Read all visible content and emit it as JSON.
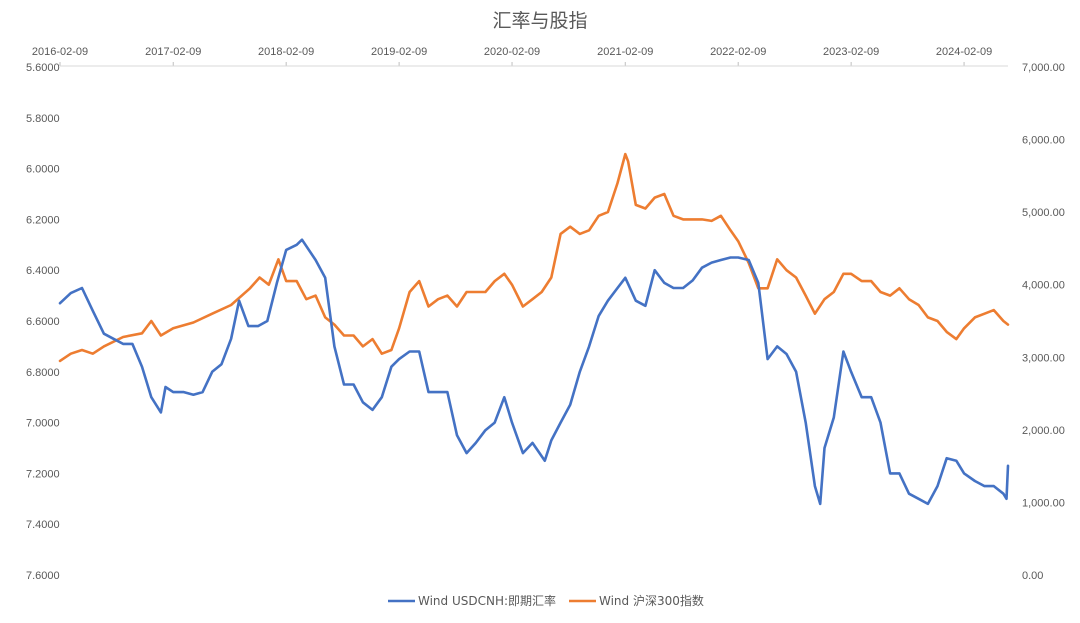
{
  "chart_data": {
    "type": "line",
    "title": "汇率与股指",
    "x_tick_labels": [
      "2016-02-09",
      "2017-02-09",
      "2018-02-09",
      "2019-02-09",
      "2020-02-09",
      "2021-02-09",
      "2022-02-09",
      "2023-02-09",
      "2024-02-09"
    ],
    "x_range": [
      "2016-02-09",
      "2024-06-30"
    ],
    "left_axis": {
      "ticks": [
        "5.6000",
        "5.8000",
        "6.0000",
        "6.2000",
        "6.4000",
        "6.6000",
        "6.8000",
        "7.0000",
        "7.2000",
        "7.4000",
        "7.6000"
      ],
      "range": [
        5.6,
        7.6
      ],
      "reversed": true
    },
    "right_axis": {
      "ticks": [
        "0.00",
        "1,000.00",
        "2,000.00",
        "3,000.00",
        "4,000.00",
        "5,000.00",
        "6,000.00",
        "7,000.00"
      ],
      "range": [
        0,
        7000
      ]
    },
    "legend_position": "bottom",
    "series": [
      {
        "name": "Wind USDCNH:即期汇率",
        "axis": "left",
        "color": "#4472C4",
        "points": [
          [
            "2016-02-09",
            6.53
          ],
          [
            "2016-03-15",
            6.49
          ],
          [
            "2016-04-20",
            6.47
          ],
          [
            "2016-05-25",
            6.56
          ],
          [
            "2016-06-30",
            6.65
          ],
          [
            "2016-07-31",
            6.67
          ],
          [
            "2016-08-31",
            6.69
          ],
          [
            "2016-09-30",
            6.69
          ],
          [
            "2016-10-31",
            6.78
          ],
          [
            "2016-11-30",
            6.9
          ],
          [
            "2016-12-31",
            6.96
          ],
          [
            "2017-01-15",
            6.86
          ],
          [
            "2017-02-09",
            6.88
          ],
          [
            "2017-03-15",
            6.88
          ],
          [
            "2017-04-15",
            6.89
          ],
          [
            "2017-05-15",
            6.88
          ],
          [
            "2017-06-15",
            6.8
          ],
          [
            "2017-07-15",
            6.77
          ],
          [
            "2017-08-15",
            6.67
          ],
          [
            "2017-09-10",
            6.52
          ],
          [
            "2017-10-10",
            6.62
          ],
          [
            "2017-11-10",
            6.62
          ],
          [
            "2017-12-10",
            6.6
          ],
          [
            "2018-01-10",
            6.45
          ],
          [
            "2018-02-09",
            6.32
          ],
          [
            "2018-03-15",
            6.3
          ],
          [
            "2018-04-01",
            6.28
          ],
          [
            "2018-05-15",
            6.36
          ],
          [
            "2018-06-15",
            6.43
          ],
          [
            "2018-07-15",
            6.7
          ],
          [
            "2018-08-15",
            6.85
          ],
          [
            "2018-09-15",
            6.85
          ],
          [
            "2018-10-15",
            6.92
          ],
          [
            "2018-11-15",
            6.95
          ],
          [
            "2018-12-15",
            6.9
          ],
          [
            "2019-01-15",
            6.78
          ],
          [
            "2019-02-09",
            6.75
          ],
          [
            "2019-03-15",
            6.72
          ],
          [
            "2019-04-15",
            6.72
          ],
          [
            "2019-05-15",
            6.88
          ],
          [
            "2019-06-15",
            6.88
          ],
          [
            "2019-07-15",
            6.88
          ],
          [
            "2019-08-15",
            7.05
          ],
          [
            "2019-09-15",
            7.12
          ],
          [
            "2019-10-15",
            7.08
          ],
          [
            "2019-11-15",
            7.03
          ],
          [
            "2019-12-15",
            7.0
          ],
          [
            "2020-01-15",
            6.9
          ],
          [
            "2020-02-09",
            7.0
          ],
          [
            "2020-03-15",
            7.12
          ],
          [
            "2020-04-15",
            7.08
          ],
          [
            "2020-05-25",
            7.15
          ],
          [
            "2020-06-15",
            7.07
          ],
          [
            "2020-07-15",
            7.0
          ],
          [
            "2020-08-15",
            6.93
          ],
          [
            "2020-09-15",
            6.8
          ],
          [
            "2020-10-15",
            6.7
          ],
          [
            "2020-11-15",
            6.58
          ],
          [
            "2020-12-15",
            6.52
          ],
          [
            "2021-01-15",
            6.47
          ],
          [
            "2021-02-09",
            6.43
          ],
          [
            "2021-03-15",
            6.52
          ],
          [
            "2021-04-15",
            6.54
          ],
          [
            "2021-05-15",
            6.4
          ],
          [
            "2021-06-15",
            6.45
          ],
          [
            "2021-07-15",
            6.47
          ],
          [
            "2021-08-15",
            6.47
          ],
          [
            "2021-09-15",
            6.44
          ],
          [
            "2021-10-15",
            6.39
          ],
          [
            "2021-11-15",
            6.37
          ],
          [
            "2021-12-15",
            6.36
          ],
          [
            "2022-01-15",
            6.35
          ],
          [
            "2022-02-09",
            6.35
          ],
          [
            "2022-03-15",
            6.36
          ],
          [
            "2022-04-15",
            6.45
          ],
          [
            "2022-05-15",
            6.75
          ],
          [
            "2022-06-15",
            6.7
          ],
          [
            "2022-07-15",
            6.73
          ],
          [
            "2022-08-15",
            6.8
          ],
          [
            "2022-09-15",
            7.0
          ],
          [
            "2022-10-15",
            7.25
          ],
          [
            "2022-11-01",
            7.32
          ],
          [
            "2022-11-15",
            7.1
          ],
          [
            "2022-12-15",
            6.98
          ],
          [
            "2023-01-15",
            6.72
          ],
          [
            "2023-02-09",
            6.8
          ],
          [
            "2023-03-15",
            6.9
          ],
          [
            "2023-04-15",
            6.9
          ],
          [
            "2023-05-15",
            7.0
          ],
          [
            "2023-06-15",
            7.2
          ],
          [
            "2023-07-15",
            7.2
          ],
          [
            "2023-08-15",
            7.28
          ],
          [
            "2023-09-15",
            7.3
          ],
          [
            "2023-10-15",
            7.32
          ],
          [
            "2023-11-15",
            7.25
          ],
          [
            "2023-12-15",
            7.14
          ],
          [
            "2024-01-15",
            7.15
          ],
          [
            "2024-02-09",
            7.2
          ],
          [
            "2024-03-15",
            7.23
          ],
          [
            "2024-04-15",
            7.25
          ],
          [
            "2024-05-15",
            7.25
          ],
          [
            "2024-06-15",
            7.28
          ],
          [
            "2024-06-25",
            7.3
          ],
          [
            "2024-06-30",
            7.17
          ]
        ]
      },
      {
        "name": "Wind 沪深300指数",
        "axis": "right",
        "color": "#ED7D31",
        "points": [
          [
            "2016-02-09",
            2950
          ],
          [
            "2016-03-15",
            3050
          ],
          [
            "2016-04-20",
            3100
          ],
          [
            "2016-05-25",
            3050
          ],
          [
            "2016-06-30",
            3150
          ],
          [
            "2016-08-31",
            3280
          ],
          [
            "2016-10-31",
            3330
          ],
          [
            "2016-11-30",
            3500
          ],
          [
            "2016-12-31",
            3300
          ],
          [
            "2017-02-09",
            3400
          ],
          [
            "2017-04-15",
            3480
          ],
          [
            "2017-06-15",
            3600
          ],
          [
            "2017-08-15",
            3720
          ],
          [
            "2017-10-15",
            3950
          ],
          [
            "2017-11-15",
            4100
          ],
          [
            "2017-12-15",
            4000
          ],
          [
            "2018-01-15",
            4350
          ],
          [
            "2018-02-09",
            4050
          ],
          [
            "2018-03-15",
            4050
          ],
          [
            "2018-04-15",
            3800
          ],
          [
            "2018-05-15",
            3850
          ],
          [
            "2018-06-15",
            3550
          ],
          [
            "2018-07-15",
            3450
          ],
          [
            "2018-08-15",
            3300
          ],
          [
            "2018-09-15",
            3300
          ],
          [
            "2018-10-15",
            3150
          ],
          [
            "2018-11-15",
            3250
          ],
          [
            "2018-12-15",
            3050
          ],
          [
            "2019-01-15",
            3100
          ],
          [
            "2019-02-09",
            3400
          ],
          [
            "2019-03-15",
            3900
          ],
          [
            "2019-04-15",
            4050
          ],
          [
            "2019-05-15",
            3700
          ],
          [
            "2019-06-15",
            3800
          ],
          [
            "2019-07-15",
            3850
          ],
          [
            "2019-08-15",
            3700
          ],
          [
            "2019-09-15",
            3900
          ],
          [
            "2019-10-15",
            3900
          ],
          [
            "2019-11-15",
            3900
          ],
          [
            "2019-12-15",
            4050
          ],
          [
            "2020-01-15",
            4150
          ],
          [
            "2020-02-09",
            4000
          ],
          [
            "2020-03-15",
            3700
          ],
          [
            "2020-04-15",
            3800
          ],
          [
            "2020-05-15",
            3900
          ],
          [
            "2020-06-15",
            4100
          ],
          [
            "2020-07-15",
            4700
          ],
          [
            "2020-08-15",
            4800
          ],
          [
            "2020-09-15",
            4700
          ],
          [
            "2020-10-15",
            4750
          ],
          [
            "2020-11-15",
            4950
          ],
          [
            "2020-12-15",
            5000
          ],
          [
            "2021-01-15",
            5400
          ],
          [
            "2021-02-09",
            5800
          ],
          [
            "2021-02-18",
            5700
          ],
          [
            "2021-03-15",
            5100
          ],
          [
            "2021-04-15",
            5050
          ],
          [
            "2021-05-15",
            5200
          ],
          [
            "2021-06-15",
            5250
          ],
          [
            "2021-07-15",
            4950
          ],
          [
            "2021-08-15",
            4900
          ],
          [
            "2021-09-15",
            4900
          ],
          [
            "2021-10-15",
            4900
          ],
          [
            "2021-11-15",
            4880
          ],
          [
            "2021-12-15",
            4950
          ],
          [
            "2022-01-15",
            4750
          ],
          [
            "2022-02-09",
            4600
          ],
          [
            "2022-03-15",
            4300
          ],
          [
            "2022-04-15",
            3950
          ],
          [
            "2022-05-15",
            3950
          ],
          [
            "2022-06-15",
            4350
          ],
          [
            "2022-07-15",
            4200
          ],
          [
            "2022-08-15",
            4100
          ],
          [
            "2022-09-15",
            3850
          ],
          [
            "2022-10-15",
            3600
          ],
          [
            "2022-11-15",
            3800
          ],
          [
            "2022-12-15",
            3900
          ],
          [
            "2023-01-15",
            4150
          ],
          [
            "2023-02-09",
            4150
          ],
          [
            "2023-03-15",
            4050
          ],
          [
            "2023-04-15",
            4050
          ],
          [
            "2023-05-15",
            3900
          ],
          [
            "2023-06-15",
            3850
          ],
          [
            "2023-07-15",
            3950
          ],
          [
            "2023-08-15",
            3800
          ],
          [
            "2023-09-15",
            3720
          ],
          [
            "2023-10-15",
            3550
          ],
          [
            "2023-11-15",
            3500
          ],
          [
            "2023-12-15",
            3350
          ],
          [
            "2024-01-15",
            3250
          ],
          [
            "2024-02-09",
            3400
          ],
          [
            "2024-03-15",
            3550
          ],
          [
            "2024-04-15",
            3600
          ],
          [
            "2024-05-15",
            3650
          ],
          [
            "2024-06-15",
            3500
          ],
          [
            "2024-06-30",
            3450
          ]
        ]
      }
    ]
  }
}
